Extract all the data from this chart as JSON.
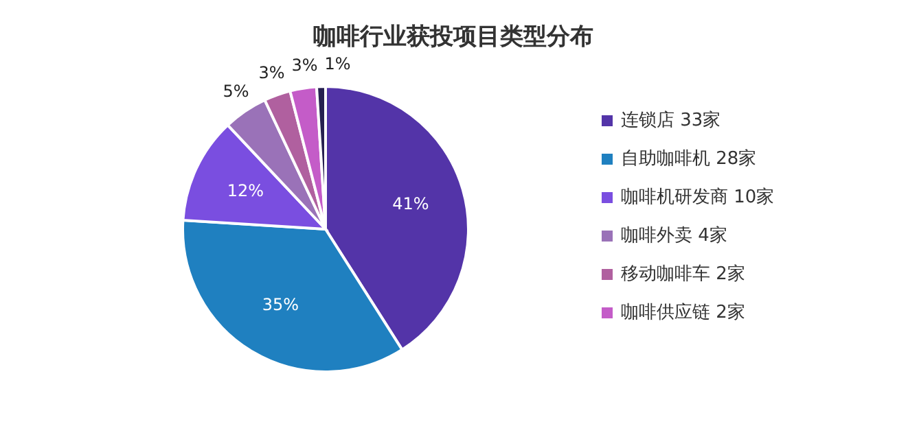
{
  "chart_data": {
    "type": "pie",
    "title": "咖啡行业获投项目类型分布",
    "categories": [
      "连锁店 33家",
      "自助咖啡机 28家",
      "咖啡机研发商 10家",
      "咖啡外卖 4家",
      "移动咖啡车 2家",
      "咖啡供应链 2家",
      null
    ],
    "values": [
      41,
      35,
      12,
      5,
      3,
      3,
      1
    ],
    "value_labels": [
      "41%",
      "35%",
      "12%",
      "5%",
      "3%",
      "3%",
      "1%"
    ],
    "colors": [
      "#5334a8",
      "#1f80c0",
      "#7a4ee0",
      "#9a72b8",
      "#b0609f",
      "#c45cc8",
      "#262050"
    ],
    "legend": "right"
  }
}
